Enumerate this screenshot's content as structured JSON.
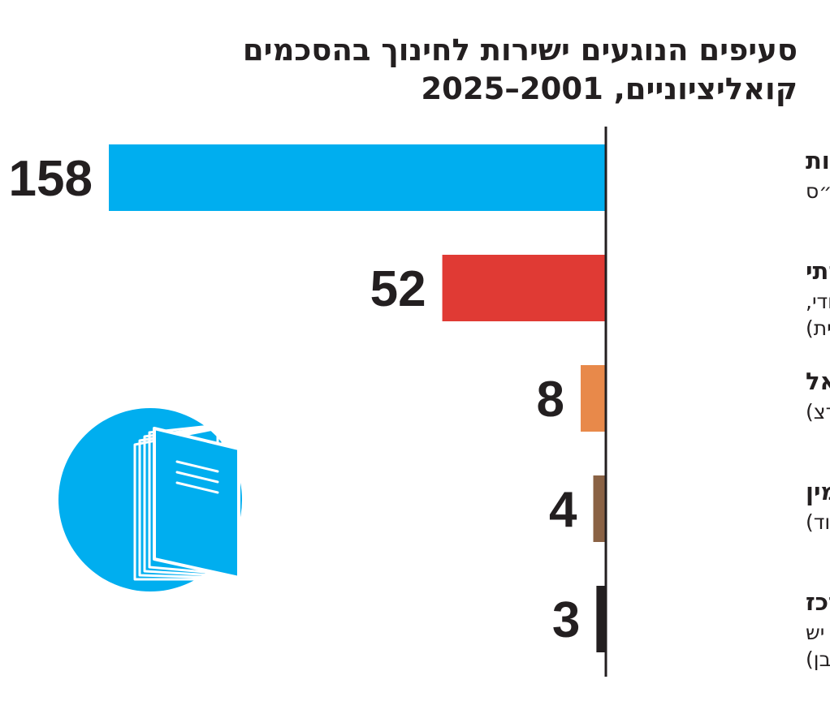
{
  "chart_data": {
    "type": "bar",
    "orientation": "horizontal",
    "title_lines": [
      "סעיפים הנוגעים ישירות לחינוך בהסכמים",
      "קואליציוניים, 2001–2025"
    ],
    "categories": [
      {
        "name": "מפלגות חרדיות",
        "detail_lines": [
          "(יהדות התורה, ש״ס"
        ],
        "value": 158,
        "color": "#00aeef"
      },
      {
        "name": "מפלגות ימין דתי",
        "detail_lines": [
          "(מפד״ל, הבית היהודי,",
          "הציונות הדתית)"
        ],
        "value": 52,
        "color": "#e03a34"
      },
      {
        "name": "מפלגות שמאל",
        "detail_lines": [
          "(עבודה, מרצ)"
        ],
        "value": 8,
        "color": "#e8894a"
      },
      {
        "name": "מפלגות ימין",
        "detail_lines": [
          "(ליכוד)"
        ],
        "value": 4,
        "color": "#8a6244"
      },
      {
        "name": "מפלגות מרכז",
        "detail_lines": [
          "(שינוי, קדימה, יש",
          "עתיד, כחול לבן)"
        ],
        "value": 3,
        "color": "#231f20"
      }
    ],
    "xlim": [
      0,
      158
    ],
    "grid": false,
    "legend": "none"
  },
  "icon": {
    "name": "documents-icon",
    "circle_color": "#00aeef"
  }
}
